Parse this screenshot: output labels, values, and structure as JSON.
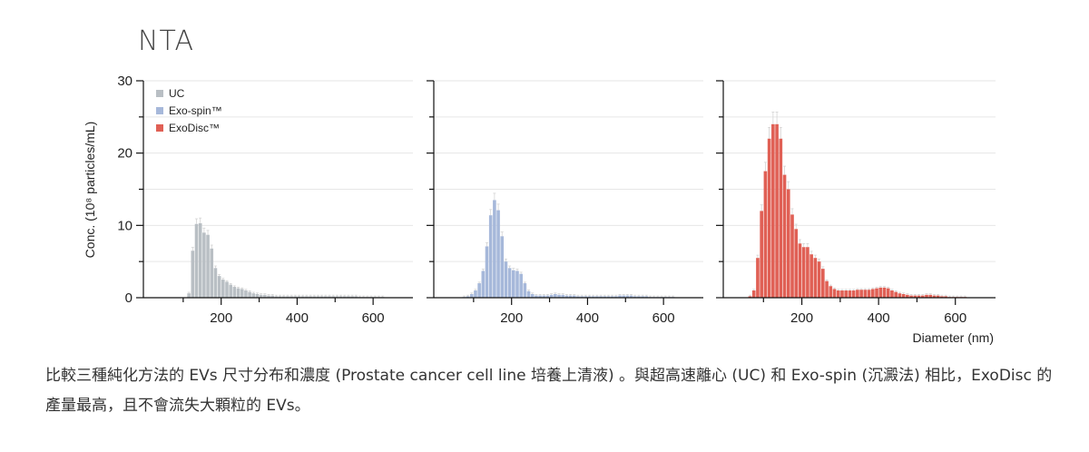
{
  "heading": "NTA",
  "caption": "比較三種純化方法的 EVs 尺寸分布和濃度 (Prostate cancer cell line 培養上清液) 。與超高速離心 (UC) 和 Exo-spin (沉澱法) 相比，ExoDisc 的產量最高，且不會流失大顆粒的 EVs。",
  "colors": {
    "UC": "#b9bfc4",
    "Exo-spin": "#a6b8da",
    "ExoDisc": "#e06055",
    "error": "#d4d4d4",
    "axis": "#111111",
    "grid": "#e6e6e6"
  },
  "chart_data": {
    "type": "bar",
    "ylabel": "Conc. (10⁸ particles/mL)",
    "xlabel": "Diameter (nm)",
    "ylim": [
      0,
      30
    ],
    "xlim": [
      0,
      700
    ],
    "yticks": [
      "0",
      "10",
      "20",
      "30"
    ],
    "xticks": [
      "200",
      "400",
      "600"
    ],
    "grid": true,
    "legend": {
      "position": "top-left",
      "entries": [
        "UC",
        "Exo-spin™",
        "ExoDisc™"
      ]
    },
    "bin_width_nm": 10,
    "panels": [
      {
        "series": "UC",
        "x": [
          115,
          125,
          135,
          145,
          155,
          165,
          175,
          185,
          195,
          205,
          215,
          225,
          235,
          245,
          255,
          265,
          275,
          285,
          295,
          305,
          315,
          325,
          335,
          345,
          355,
          365,
          375,
          385,
          395,
          405,
          415,
          425,
          435,
          445,
          455,
          465,
          475,
          485,
          495,
          505,
          515,
          525,
          535,
          545,
          555,
          565,
          575,
          585,
          595,
          605,
          615,
          625
        ],
        "values": [
          0.6,
          6.5,
          10.2,
          10.3,
          9.0,
          8.7,
          6.8,
          4.1,
          3.0,
          2.5,
          2.2,
          1.8,
          1.5,
          1.3,
          1.2,
          1.0,
          0.8,
          0.6,
          0.5,
          0.4,
          0.4,
          0.3,
          0.3,
          0.2,
          0.2,
          0.2,
          0.2,
          0.2,
          0.2,
          0.2,
          0.2,
          0.2,
          0.2,
          0.2,
          0.2,
          0.2,
          0.2,
          0.2,
          0.2,
          0.2,
          0.2,
          0.2,
          0.2,
          0.2,
          0.2,
          0.1,
          0.1,
          0.1,
          0.1,
          0.1,
          0.1,
          0.1
        ]
      },
      {
        "series": "Exo-spin™",
        "x": [
          75,
          85,
          95,
          105,
          115,
          125,
          135,
          145,
          155,
          165,
          175,
          185,
          195,
          205,
          215,
          225,
          235,
          245,
          255,
          265,
          275,
          285,
          295,
          305,
          315,
          325,
          335,
          345,
          355,
          365,
          375,
          385,
          395,
          405,
          415,
          425,
          435,
          445,
          455,
          465,
          475,
          485,
          495,
          505,
          515,
          525,
          535,
          545,
          555,
          565,
          575,
          585,
          595,
          605,
          615,
          625
        ],
        "values": [
          0.1,
          0.2,
          0.5,
          1.0,
          2.0,
          3.7,
          7.1,
          11.4,
          13.5,
          12.1,
          8.5,
          5.0,
          4.1,
          3.8,
          3.7,
          3.3,
          2.0,
          0.9,
          0.5,
          0.3,
          0.3,
          0.3,
          0.3,
          0.4,
          0.5,
          0.4,
          0.4,
          0.3,
          0.3,
          0.3,
          0.2,
          0.2,
          0.2,
          0.2,
          0.2,
          0.2,
          0.2,
          0.2,
          0.2,
          0.2,
          0.2,
          0.3,
          0.3,
          0.3,
          0.3,
          0.2,
          0.2,
          0.2,
          0.2,
          0.1,
          0.1,
          0.1,
          0.1,
          0.1,
          0.1,
          0.1
        ]
      },
      {
        "series": "ExoDisc™",
        "x": [
          65,
          75,
          85,
          95,
          105,
          115,
          125,
          135,
          145,
          155,
          165,
          175,
          185,
          195,
          205,
          215,
          225,
          235,
          245,
          255,
          265,
          275,
          285,
          295,
          305,
          315,
          325,
          335,
          345,
          355,
          365,
          375,
          385,
          395,
          405,
          415,
          425,
          435,
          445,
          455,
          465,
          475,
          485,
          495,
          505,
          515,
          525,
          535,
          545,
          555,
          565,
          575,
          585,
          595,
          605,
          615,
          625
        ],
        "values": [
          0.2,
          1.0,
          5.5,
          12.0,
          17.5,
          22.0,
          24.0,
          24.0,
          22.0,
          17.0,
          15.0,
          11.5,
          9.5,
          7.5,
          7.0,
          7.0,
          6.0,
          5.5,
          5.0,
          4.0,
          2.3,
          1.6,
          1.2,
          1.0,
          1.0,
          1.0,
          1.0,
          1.0,
          1.1,
          1.1,
          1.1,
          1.1,
          1.2,
          1.3,
          1.4,
          1.4,
          1.3,
          1.0,
          0.8,
          0.6,
          0.5,
          0.4,
          0.3,
          0.3,
          0.3,
          0.3,
          0.4,
          0.4,
          0.3,
          0.3,
          0.2,
          0.2,
          0.1,
          0.1,
          0.1,
          0.1,
          0.1
        ]
      }
    ]
  }
}
